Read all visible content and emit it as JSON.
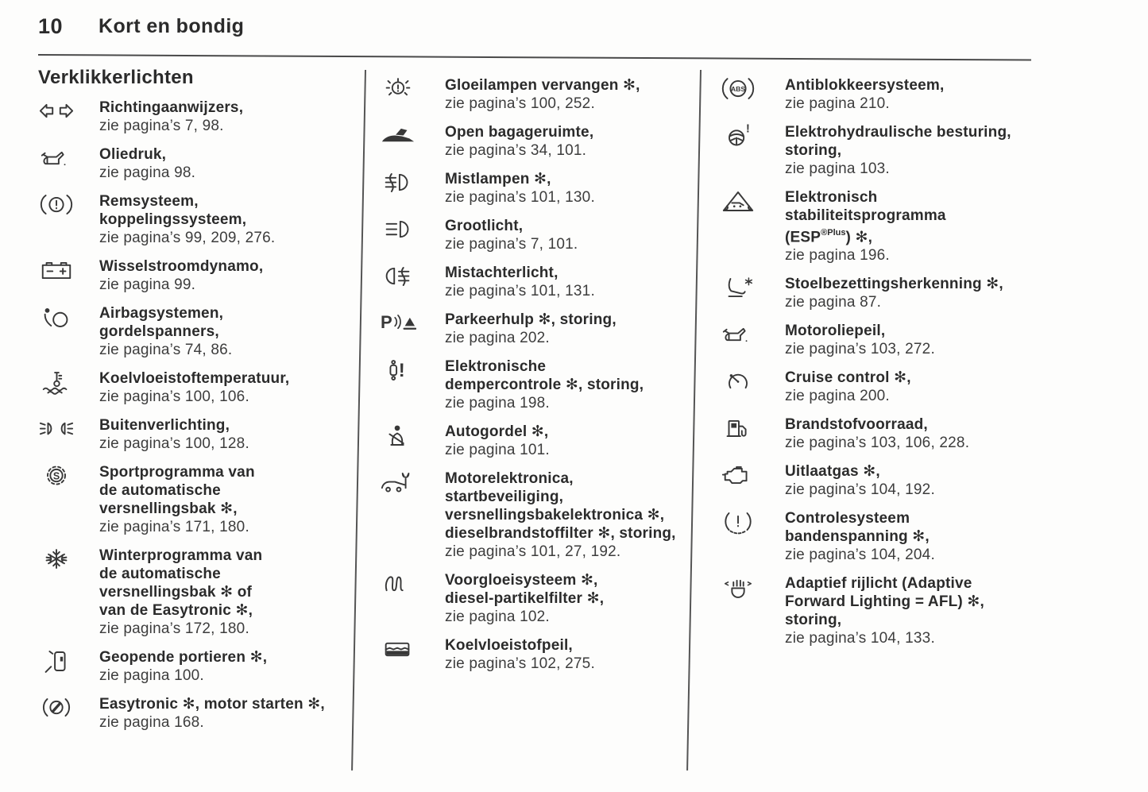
{
  "page": {
    "number": "10",
    "chapter": "Kort en bondig",
    "section_title": "Verklikkerlichten",
    "optional_equipment_marker": "✻",
    "ink_color": "#2b2b2b"
  },
  "columns": [
    {
      "entries": [
        {
          "icon": "turn-signals-icon",
          "title_lines": [
            "Richtingaanwijzers,"
          ],
          "page_ref": "zie pagina’s 7, 98."
        },
        {
          "icon": "oil-pressure-icon",
          "title_lines": [
            "Oliedruk,"
          ],
          "page_ref": "zie pagina 98."
        },
        {
          "icon": "brake-system-icon",
          "title_lines": [
            "Remsysteem,",
            "koppelingssysteem,"
          ],
          "page_ref": "zie pagina’s 99, 209, 276."
        },
        {
          "icon": "battery-icon",
          "title_lines": [
            "Wisselstroomdynamo,"
          ],
          "page_ref": "zie pagina 99."
        },
        {
          "icon": "airbag-icon",
          "title_lines": [
            "Airbagsystemen,",
            "gordelspanners,"
          ],
          "page_ref": "zie pagina’s 74, 86."
        },
        {
          "icon": "coolant-temperature-icon",
          "title_lines": [
            "Koelvloeistoftemperatuur,"
          ],
          "page_ref": "zie pagina’s 100, 106."
        },
        {
          "icon": "exterior-lights-icon",
          "title_lines": [
            "Buitenverlichting,"
          ],
          "page_ref": "zie pagina’s 100, 128."
        },
        {
          "icon": "sport-program-icon",
          "title_lines": [
            "Sportprogramma van",
            "de automatische",
            "versnellingsbak ✻,"
          ],
          "page_ref": "zie pagina’s 171, 180."
        },
        {
          "icon": "winter-program-icon",
          "title_lines": [
            "Winterprogramma van",
            "de automatische",
            "versnellingsbak ✻ of",
            "van de Easytronic ✻,"
          ],
          "page_ref": "zie pagina’s 172, 180."
        },
        {
          "icon": "doors-open-icon",
          "title_lines": [
            "Geopende portieren ✻,"
          ],
          "page_ref": "zie pagina 100."
        },
        {
          "icon": "easytronic-icon",
          "title_lines": [
            "Easytronic ✻, motor starten ✻,"
          ],
          "page_ref": "zie pagina 168."
        }
      ]
    },
    {
      "entries": [
        {
          "icon": "bulb-icon",
          "title_lines": [
            "Gloeilampen vervangen ✻,"
          ],
          "page_ref": "zie pagina’s 100, 252."
        },
        {
          "icon": "trunk-open-icon",
          "title_lines": [
            "Open bagageruimte,"
          ],
          "page_ref": "zie pagina’s 34, 101."
        },
        {
          "icon": "front-fog-icon",
          "title_lines": [
            "Mistlampen ✻,"
          ],
          "page_ref": "zie pagina’s 101, 130."
        },
        {
          "icon": "high-beam-icon",
          "title_lines": [
            "Grootlicht,"
          ],
          "page_ref": "zie pagina’s 7, 101."
        },
        {
          "icon": "rear-fog-icon",
          "title_lines": [
            "Mistachterlicht,"
          ],
          "page_ref": "zie pagina’s 101, 131."
        },
        {
          "icon": "park-assist-icon",
          "title_lines": [
            "Parkeerhulp ✻, storing,"
          ],
          "page_ref": "zie pagina 202."
        },
        {
          "icon": "damper-icon",
          "title_lines": [
            "Elektronische",
            "dempercontrole ✻, storing,"
          ],
          "page_ref": "zie pagina 198."
        },
        {
          "icon": "seatbelt-icon",
          "title_lines": [
            "Autogordel ✻,"
          ],
          "page_ref": "zie pagina 101."
        },
        {
          "icon": "engine-electronics-icon",
          "title_lines": [
            "Motorelektronica,",
            "startbeveiliging,",
            "versnellingsbakelektronica ✻,",
            "dieselbrandstoffilter ✻, storing,"
          ],
          "page_ref": "zie pagina’s 101, 27, 192."
        },
        {
          "icon": "glow-plug-icon",
          "title_lines": [
            "Voorgloeisysteem ✻,",
            "diesel-partikelfilter ✻,"
          ],
          "page_ref": "zie pagina 102."
        },
        {
          "icon": "coolant-level-icon",
          "title_lines": [
            "Koelvloeistofpeil,"
          ],
          "page_ref": "zie pagina’s 102, 275."
        }
      ]
    },
    {
      "entries": [
        {
          "icon": "abs-icon",
          "title_lines": [
            "Antiblokkeersysteem,"
          ],
          "page_ref": "zie pagina 210."
        },
        {
          "icon": "steering-icon",
          "title_lines": [
            "Elektrohydraulische besturing,",
            "storing,"
          ],
          "page_ref": "zie pagina 103."
        },
        {
          "icon": "esp-icon",
          "title_lines": [
            "Elektronisch",
            "stabiliteitsprogramma",
            {
              "pre": "(ESP",
              "sup": "®Plus",
              "post": ") ✻,"
            }
          ],
          "page_ref": "zie pagina 196."
        },
        {
          "icon": "seat-occupancy-icon",
          "title_lines": [
            "Stoelbezettingsherkenning ✻,"
          ],
          "page_ref": "zie pagina 87."
        },
        {
          "icon": "oil-level-icon",
          "title_lines": [
            "Motoroliepeil,"
          ],
          "page_ref": "zie pagina’s 103, 272."
        },
        {
          "icon": "cruise-control-icon",
          "title_lines": [
            "Cruise control ✻,"
          ],
          "page_ref": "zie pagina 200."
        },
        {
          "icon": "fuel-icon",
          "title_lines": [
            "Brandstofvoorraad,"
          ],
          "page_ref": "zie pagina’s 103, 106, 228."
        },
        {
          "icon": "exhaust-icon",
          "title_lines": [
            "Uitlaatgas ✻,"
          ],
          "page_ref": "zie pagina’s 104, 192."
        },
        {
          "icon": "tire-pressure-icon",
          "title_lines": [
            "Controlesysteem",
            "bandenspanning ✻,"
          ],
          "page_ref": "zie pagina’s 104, 204."
        },
        {
          "icon": "afl-icon",
          "title_lines": [
            "Adaptief rijlicht (Adaptive",
            "Forward Lighting = AFL) ✻,",
            "storing,"
          ],
          "page_ref": "zie pagina’s 104, 133."
        }
      ]
    }
  ]
}
